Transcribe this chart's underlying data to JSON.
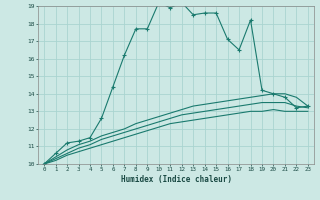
{
  "title": "",
  "xlabel": "Humidex (Indice chaleur)",
  "ylabel": "",
  "background_color": "#cce8e4",
  "grid_color": "#aad4d0",
  "line_color": "#1a7a6e",
  "xlim": [
    -0.5,
    23.5
  ],
  "ylim": [
    10,
    19
  ],
  "xticks": [
    0,
    1,
    2,
    3,
    4,
    5,
    6,
    7,
    8,
    9,
    10,
    11,
    12,
    13,
    14,
    15,
    16,
    17,
    18,
    19,
    20,
    21,
    22,
    23
  ],
  "yticks": [
    10,
    11,
    12,
    13,
    14,
    15,
    16,
    17,
    18,
    19
  ],
  "curve1_x": [
    0,
    1,
    2,
    3,
    4,
    5,
    6,
    7,
    8,
    9,
    10,
    11,
    12,
    13,
    14,
    15,
    16,
    17,
    18,
    19,
    20,
    21,
    22,
    23
  ],
  "curve1_y": [
    10.0,
    10.6,
    11.2,
    11.3,
    11.5,
    12.6,
    14.4,
    16.2,
    17.7,
    17.7,
    19.2,
    18.9,
    19.2,
    18.5,
    18.6,
    18.6,
    17.1,
    16.5,
    18.2,
    14.2,
    14.0,
    13.8,
    13.2,
    13.3
  ],
  "curve2_x": [
    0,
    1,
    2,
    3,
    4,
    5,
    6,
    7,
    8,
    9,
    10,
    11,
    12,
    13,
    14,
    15,
    16,
    17,
    18,
    19,
    20,
    21,
    22,
    23
  ],
  "curve2_y": [
    10.0,
    10.4,
    10.8,
    11.1,
    11.3,
    11.6,
    11.8,
    12.0,
    12.3,
    12.5,
    12.7,
    12.9,
    13.1,
    13.3,
    13.4,
    13.5,
    13.6,
    13.7,
    13.8,
    13.9,
    14.0,
    14.0,
    13.8,
    13.3
  ],
  "curve3_x": [
    0,
    1,
    2,
    3,
    4,
    5,
    6,
    7,
    8,
    9,
    10,
    11,
    12,
    13,
    14,
    15,
    16,
    17,
    18,
    19,
    20,
    21,
    22,
    23
  ],
  "curve3_y": [
    10.0,
    10.3,
    10.6,
    10.9,
    11.1,
    11.4,
    11.6,
    11.8,
    12.0,
    12.2,
    12.4,
    12.6,
    12.8,
    12.9,
    13.0,
    13.1,
    13.2,
    13.3,
    13.4,
    13.5,
    13.5,
    13.5,
    13.3,
    13.2
  ],
  "curve4_x": [
    0,
    1,
    2,
    3,
    4,
    5,
    6,
    7,
    8,
    9,
    10,
    11,
    12,
    13,
    14,
    15,
    16,
    17,
    18,
    19,
    20,
    21,
    22,
    23
  ],
  "curve4_y": [
    10.0,
    10.2,
    10.5,
    10.7,
    10.9,
    11.1,
    11.3,
    11.5,
    11.7,
    11.9,
    12.1,
    12.3,
    12.4,
    12.5,
    12.6,
    12.7,
    12.8,
    12.9,
    13.0,
    13.0,
    13.1,
    13.0,
    13.0,
    13.0
  ]
}
